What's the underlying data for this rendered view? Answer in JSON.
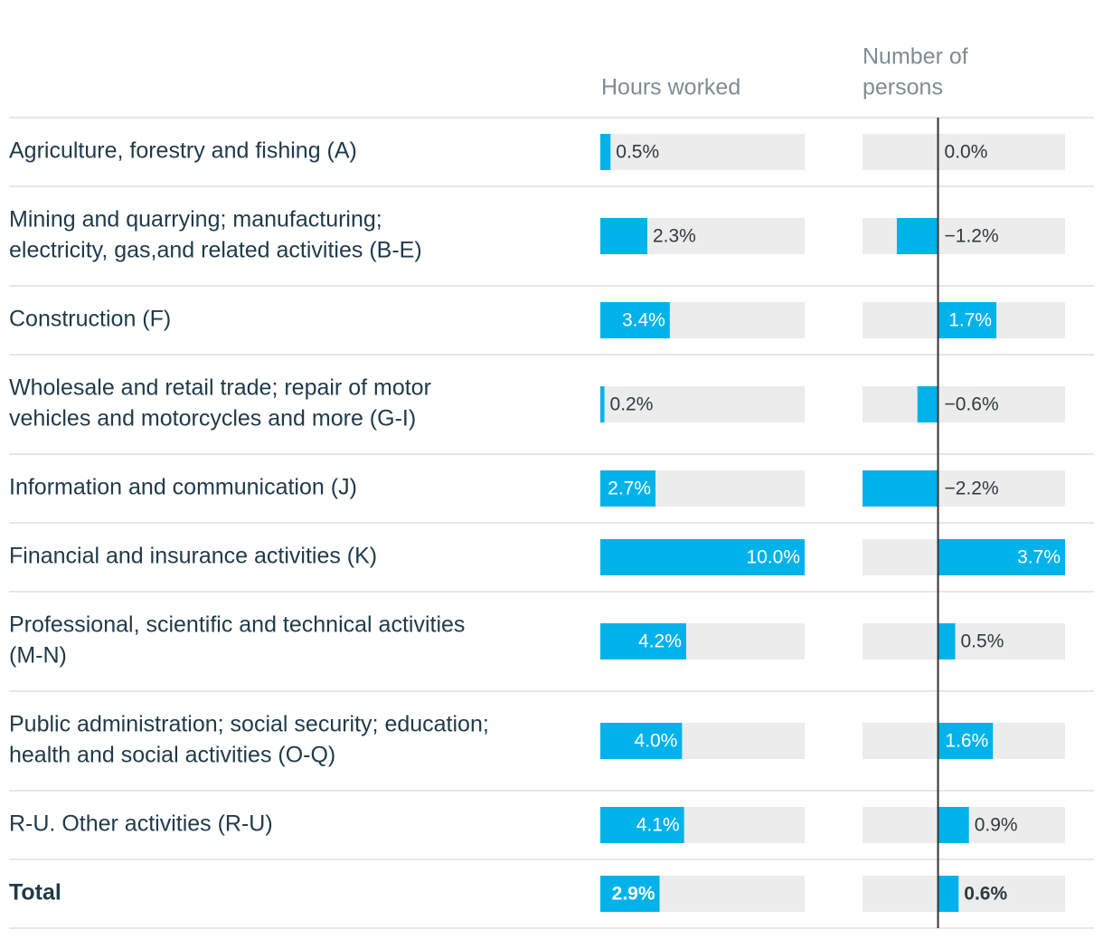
{
  "colors": {
    "bar": "#00b2ea",
    "track": "#ececec",
    "row_text": "#1f3a4a",
    "header_text": "#7f8c94",
    "value_dark": "#2e3b42",
    "value_light": "#ffffff",
    "separator": "#e3e8ea",
    "zero_line": "#333333"
  },
  "chart_data": {
    "type": "bar",
    "columns": [
      {
        "key": "hours",
        "header_lines": [
          "Hours worked"
        ],
        "min": 0,
        "max": 10
      },
      {
        "key": "persons",
        "header_lines": [
          "Number of",
          "persons"
        ],
        "min": -2.2,
        "max": 3.7
      }
    ],
    "rows": [
      {
        "label_lines": [
          "Agriculture, forestry and fishing (A)"
        ],
        "hours": 0.5,
        "hours_label": "0.5%",
        "persons": 0.0,
        "persons_label": "0.0%"
      },
      {
        "label_lines": [
          "Mining and quarrying; manufacturing;",
          "electricity, gas,and related activities (B-E)"
        ],
        "hours": 2.3,
        "hours_label": "2.3%",
        "persons": -1.2,
        "persons_label": "−1.2%"
      },
      {
        "label_lines": [
          "Construction (F)"
        ],
        "hours": 3.4,
        "hours_label": "3.4%",
        "persons": 1.7,
        "persons_label": "1.7%"
      },
      {
        "label_lines": [
          "Wholesale and retail trade; repair of motor",
          "vehicles and motorcycles and more (G-I)"
        ],
        "hours": 0.2,
        "hours_label": "0.2%",
        "persons": -0.6,
        "persons_label": "−0.6%"
      },
      {
        "label_lines": [
          "Information and communication (J)"
        ],
        "hours": 2.7,
        "hours_label": "2.7%",
        "persons": -2.2,
        "persons_label": "−2.2%"
      },
      {
        "label_lines": [
          "Financial and insurance activities (K)"
        ],
        "hours": 10.0,
        "hours_label": "10.0%",
        "persons": 3.7,
        "persons_label": "3.7%"
      },
      {
        "label_lines": [
          "Professional, scientific and technical activities",
          "(M-N)"
        ],
        "hours": 4.2,
        "hours_label": "4.2%",
        "persons": 0.5,
        "persons_label": "0.5%"
      },
      {
        "label_lines": [
          "Public administration; social security; education;",
          "health and social activities (O-Q)"
        ],
        "hours": 4.0,
        "hours_label": "4.0%",
        "persons": 1.6,
        "persons_label": "1.6%"
      },
      {
        "label_lines": [
          "R-U. Other activities (R-U)"
        ],
        "hours": 4.1,
        "hours_label": "4.1%",
        "persons": 0.9,
        "persons_label": "0.9%"
      },
      {
        "label_lines": [
          "Total"
        ],
        "hours": 2.9,
        "hours_label": "2.9%",
        "persons": 0.6,
        "persons_label": "0.6%",
        "bold": true
      }
    ]
  }
}
